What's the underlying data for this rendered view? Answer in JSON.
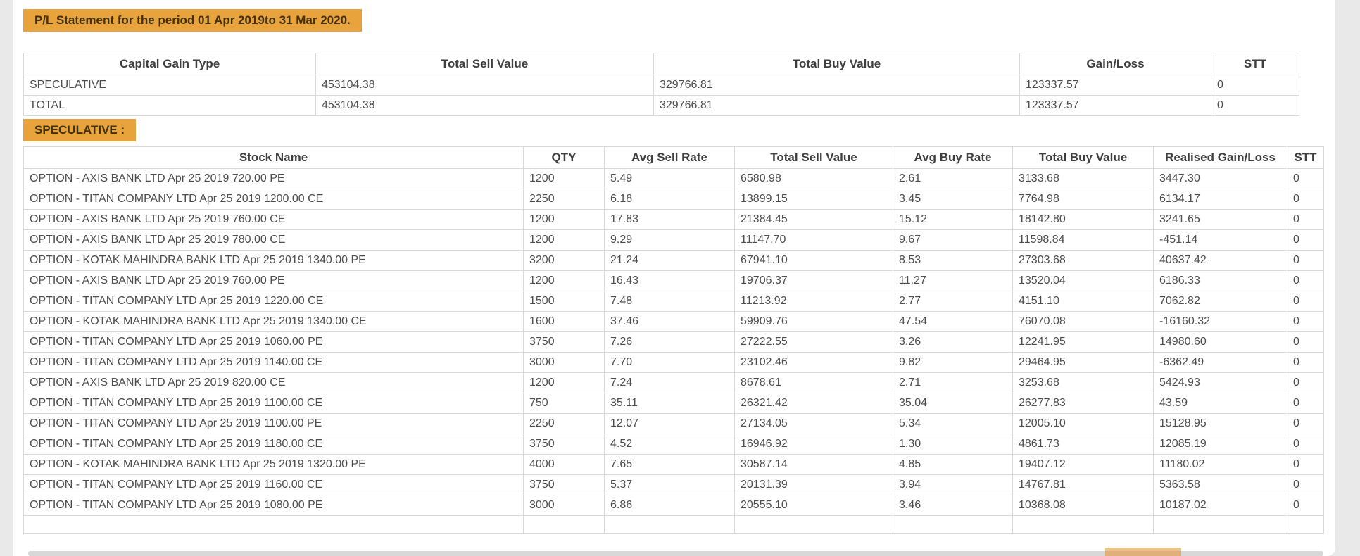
{
  "page": {
    "title_badge": "P/L Statement for the period 01 Apr 2019to 31 Mar 2020.",
    "section_badge": "SPECULATIVE :",
    "accent_color": "#e8a33c"
  },
  "summary_table": {
    "headers": [
      "Capital Gain Type",
      "Total Sell Value",
      "Total Buy Value",
      "Gain/Loss",
      "STT"
    ],
    "rows": [
      [
        "SPECULATIVE",
        "453104.38",
        "329766.81",
        "123337.57",
        "0"
      ],
      [
        "TOTAL",
        "453104.38",
        "329766.81",
        "123337.57",
        "0"
      ]
    ]
  },
  "detail_table": {
    "headers": [
      "Stock Name",
      "QTY",
      "Avg Sell Rate",
      "Total Sell Value",
      "Avg Buy Rate",
      "Total Buy Value",
      "Realised Gain/Loss",
      "STT"
    ],
    "rows": [
      [
        "OPTION - AXIS BANK LTD Apr 25 2019 720.00 PE",
        "1200",
        "5.49",
        "6580.98",
        "2.61",
        "3133.68",
        "3447.30",
        "0"
      ],
      [
        "OPTION - TITAN COMPANY LTD Apr 25 2019 1200.00 CE",
        "2250",
        "6.18",
        "13899.15",
        "3.45",
        "7764.98",
        "6134.17",
        "0"
      ],
      [
        "OPTION - AXIS BANK LTD Apr 25 2019 760.00 CE",
        "1200",
        "17.83",
        "21384.45",
        "15.12",
        "18142.80",
        "3241.65",
        "0"
      ],
      [
        "OPTION - AXIS BANK LTD Apr 25 2019 780.00 CE",
        "1200",
        "9.29",
        "11147.70",
        "9.67",
        "11598.84",
        "-451.14",
        "0"
      ],
      [
        "OPTION - KOTAK MAHINDRA BANK LTD Apr 25 2019 1340.00 PE",
        "3200",
        "21.24",
        "67941.10",
        "8.53",
        "27303.68",
        "40637.42",
        "0"
      ],
      [
        "OPTION - AXIS BANK LTD Apr 25 2019 760.00 PE",
        "1200",
        "16.43",
        "19706.37",
        "11.27",
        "13520.04",
        "6186.33",
        "0"
      ],
      [
        "OPTION - TITAN COMPANY LTD Apr 25 2019 1220.00 CE",
        "1500",
        "7.48",
        "11213.92",
        "2.77",
        "4151.10",
        "7062.82",
        "0"
      ],
      [
        "OPTION - KOTAK MAHINDRA BANK LTD Apr 25 2019 1340.00 CE",
        "1600",
        "37.46",
        "59909.76",
        "47.54",
        "76070.08",
        "-16160.32",
        "0"
      ],
      [
        "OPTION - TITAN COMPANY LTD Apr 25 2019 1060.00 PE",
        "3750",
        "7.26",
        "27222.55",
        "3.26",
        "12241.95",
        "14980.60",
        "0"
      ],
      [
        "OPTION - TITAN COMPANY LTD Apr 25 2019 1140.00 CE",
        "3000",
        "7.70",
        "23102.46",
        "9.82",
        "29464.95",
        "-6362.49",
        "0"
      ],
      [
        "OPTION - AXIS BANK LTD Apr 25 2019 820.00 CE",
        "1200",
        "7.24",
        "8678.61",
        "2.71",
        "3253.68",
        "5424.93",
        "0"
      ],
      [
        "OPTION - TITAN COMPANY LTD Apr 25 2019 1100.00 CE",
        "750",
        "35.11",
        "26321.42",
        "35.04",
        "26277.83",
        "43.59",
        "0"
      ],
      [
        "OPTION - TITAN COMPANY LTD Apr 25 2019 1100.00 PE",
        "2250",
        "12.07",
        "27134.05",
        "5.34",
        "12005.10",
        "15128.95",
        "0"
      ],
      [
        "OPTION - TITAN COMPANY LTD Apr 25 2019 1180.00 CE",
        "3750",
        "4.52",
        "16946.92",
        "1.30",
        "4861.73",
        "12085.19",
        "0"
      ],
      [
        "OPTION - KOTAK MAHINDRA BANK LTD Apr 25 2019 1320.00 PE",
        "4000",
        "7.65",
        "30587.14",
        "4.85",
        "19407.12",
        "11180.02",
        "0"
      ],
      [
        "OPTION - TITAN COMPANY LTD Apr 25 2019 1160.00 CE",
        "3750",
        "5.37",
        "20131.39",
        "3.94",
        "14767.81",
        "5363.58",
        "0"
      ],
      [
        "OPTION - TITAN COMPANY LTD Apr 25 2019 1080.00 PE",
        "3000",
        "6.86",
        "20555.10",
        "3.46",
        "10368.08",
        "10187.02",
        "0"
      ]
    ]
  }
}
